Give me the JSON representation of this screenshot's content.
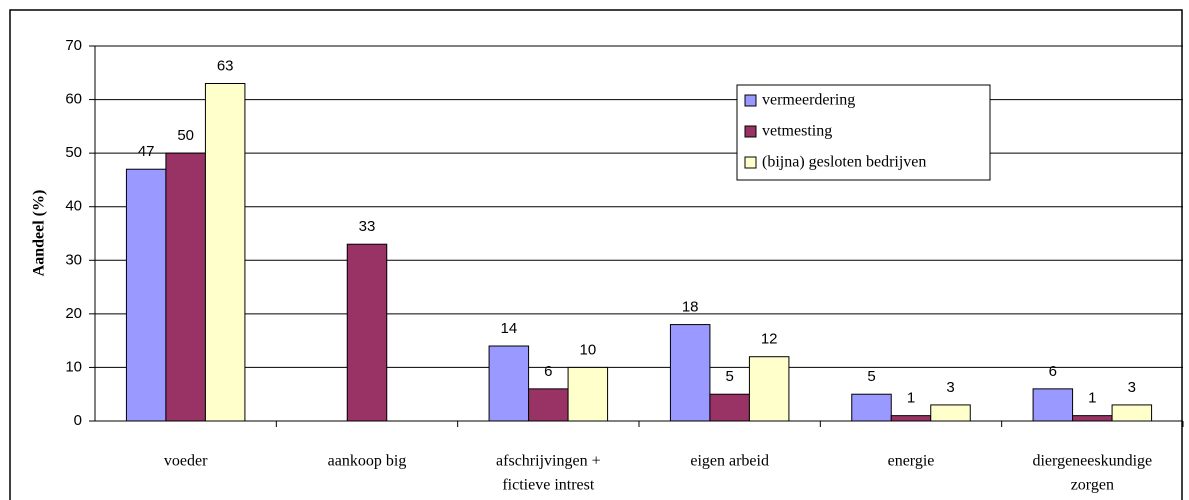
{
  "chart_data": {
    "type": "bar",
    "y_label": "Aandeel (%)",
    "categories": [
      [
        "voeder"
      ],
      [
        "aankoop big"
      ],
      [
        "afschrijvingen +",
        "fictieve intrest"
      ],
      [
        "eigen arbeid"
      ],
      [
        "energie"
      ],
      [
        "diergeneeskundige",
        "zorgen"
      ]
    ],
    "series": [
      {
        "name": "vermeerdering",
        "color": "#9999ff",
        "values": [
          47,
          null,
          14,
          18,
          5,
          6
        ]
      },
      {
        "name": "vetmesting",
        "color": "#993366",
        "values": [
          50,
          33,
          6,
          5,
          1,
          1
        ]
      },
      {
        "name": "(bijna) gesloten bedrijven",
        "color": "#ffffcc",
        "values": [
          63,
          null,
          10,
          12,
          3,
          3
        ]
      }
    ],
    "ylim": [
      0,
      70
    ],
    "yticks": [
      0,
      10,
      20,
      30,
      40,
      50,
      60,
      70
    ],
    "grid": true,
    "legend": "top-right"
  }
}
